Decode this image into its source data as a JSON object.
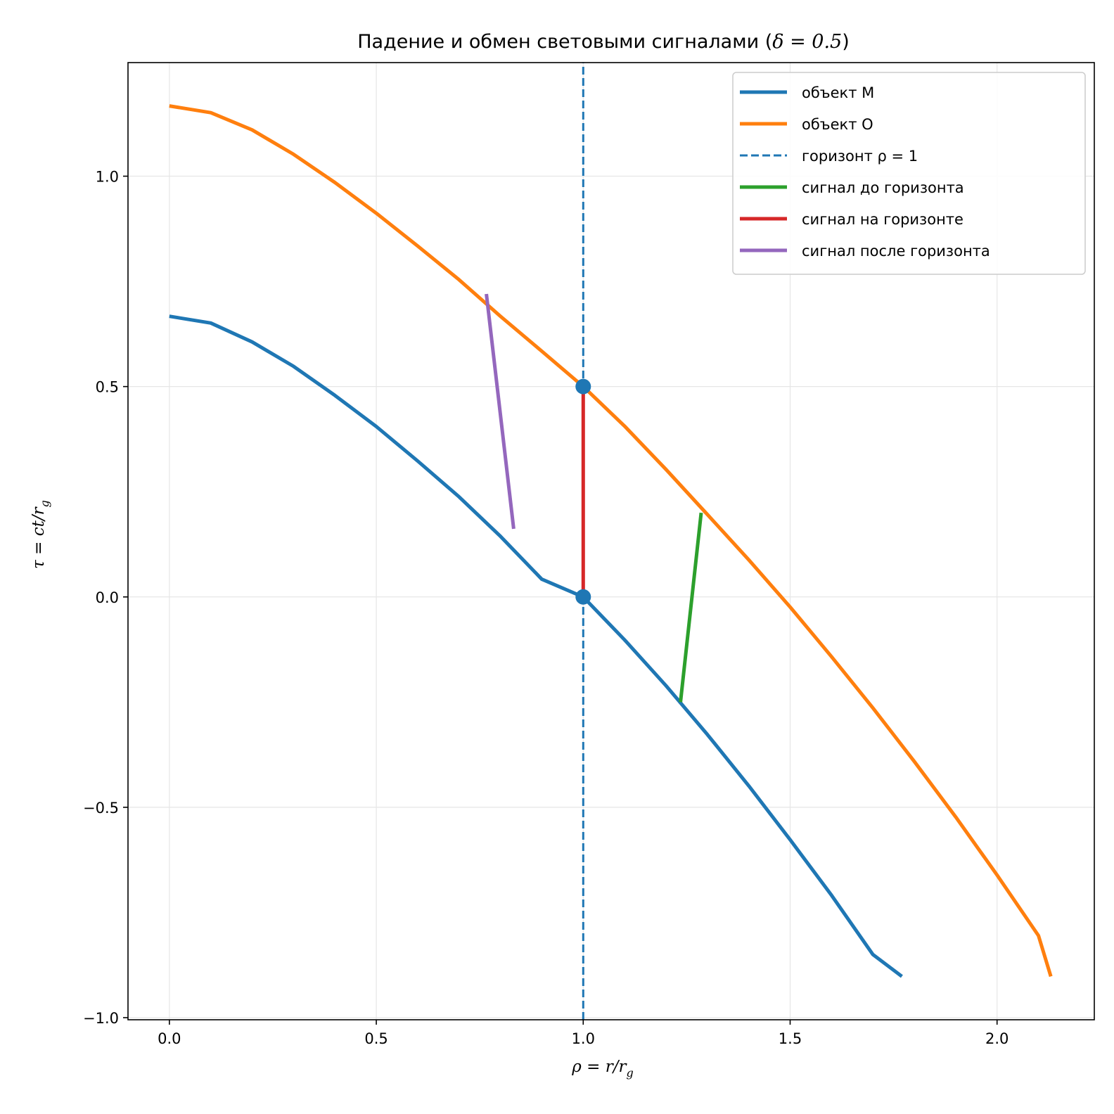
{
  "chart_data": {
    "type": "line",
    "title_main": "Падение и обмен световыми сигналами (",
    "title_math": "δ = 0.5",
    "title_end": ")",
    "xlabel": "ρ = r/r",
    "xlabel_sub": "g",
    "ylabel": "τ = ct/r",
    "ylabel_sub": "g",
    "xlim": [
      -0.1,
      2.235
    ],
    "ylim": [
      -1.005,
      1.27
    ],
    "xticks": [
      0.0,
      0.5,
      1.0,
      1.5,
      2.0
    ],
    "xtick_labels": [
      "0.0",
      "0.5",
      "1.0",
      "1.5",
      "2.0"
    ],
    "yticks": [
      -1.0,
      -0.5,
      0.0,
      0.5,
      1.0
    ],
    "ytick_labels": [
      "−1.0",
      "−0.5",
      "0.0",
      "0.5",
      "1.0"
    ],
    "grid": true,
    "legend_position": "top-right",
    "series": [
      {
        "name": "объект M",
        "color": "#1f77b4",
        "style": "solid",
        "x": [
          0.0,
          0.1,
          0.2,
          0.3,
          0.4,
          0.5,
          0.6,
          0.7,
          0.8,
          0.9,
          1.0,
          1.1,
          1.2,
          1.3,
          1.4,
          1.5,
          1.6,
          1.7,
          1.77
        ],
        "y": [
          0.667,
          0.651,
          0.606,
          0.548,
          0.479,
          0.405,
          0.323,
          0.238,
          0.144,
          0.042,
          0.0,
          -0.102,
          -0.211,
          -0.327,
          -0.449,
          -0.577,
          -0.709,
          -0.85,
          -0.902
        ]
      },
      {
        "name": "объект O",
        "color": "#ff7f0e",
        "style": "solid",
        "x": [
          0.0,
          0.1,
          0.2,
          0.3,
          0.4,
          0.5,
          0.6,
          0.7,
          0.8,
          0.9,
          1.0,
          1.1,
          1.2,
          1.3,
          1.4,
          1.5,
          1.6,
          1.7,
          1.8,
          1.9,
          2.0,
          2.1,
          2.13
        ],
        "y": [
          1.167,
          1.151,
          1.11,
          1.052,
          0.985,
          0.912,
          0.834,
          0.754,
          0.667,
          0.584,
          0.5,
          0.406,
          0.303,
          0.196,
          0.088,
          -0.024,
          -0.142,
          -0.264,
          -0.391,
          -0.523,
          -0.661,
          -0.805,
          -0.902
        ]
      },
      {
        "name": "горизонт ρ = 1",
        "color": "#1f77b4",
        "style": "dashed",
        "x": [
          1.0,
          1.0
        ],
        "y": [
          -1.005,
          1.27
        ]
      },
      {
        "name": "сигнал до горизонта",
        "color": "#2ca02c",
        "style": "solid",
        "x": [
          1.235,
          1.285
        ],
        "y": [
          -0.25,
          0.2
        ]
      },
      {
        "name": "сигнал на горизонте",
        "color": "#d62728",
        "style": "solid",
        "x": [
          1.0,
          1.0
        ],
        "y": [
          0.0,
          0.5
        ]
      },
      {
        "name": "сигнал после горизонта",
        "color": "#9467bd",
        "style": "solid",
        "x": [
          0.832,
          0.766
        ],
        "y": [
          0.162,
          0.72
        ]
      }
    ],
    "markers": [
      {
        "x": 1.0,
        "y": 0.0,
        "color": "#1f77b4"
      },
      {
        "x": 1.0,
        "y": 0.5,
        "color": "#1f77b4"
      }
    ]
  }
}
